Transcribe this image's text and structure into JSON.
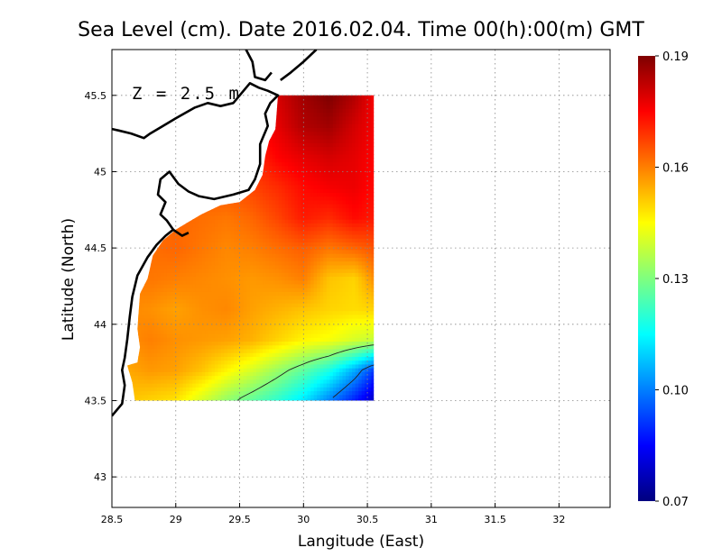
{
  "chart_data": {
    "type": "heatmap",
    "title": "Sea Level (cm). Date 2016.02.04. Time 00(h):00(m) GMT",
    "xlabel": "Langitude (East)",
    "ylabel": "Latitude (North)",
    "annotation": "Z = 2.5 m",
    "xlim": [
      28.5,
      32.4
    ],
    "ylim": [
      42.8,
      45.8
    ],
    "x_ticks": [
      "28.5",
      "29",
      "29.5",
      "30",
      "30.5",
      "31",
      "31.5",
      "32"
    ],
    "x_tick_values": [
      28.5,
      29,
      29.5,
      30,
      30.5,
      31,
      31.5,
      32
    ],
    "y_ticks": [
      "43",
      "43.5",
      "44",
      "44.5",
      "45",
      "45.5"
    ],
    "y_tick_values": [
      43,
      43.5,
      44,
      44.5,
      45,
      45.5
    ],
    "grid": true,
    "colorbar": {
      "min": 0.07,
      "max": 0.19,
      "labels": [
        "0.07",
        "0.10",
        "0.13",
        "0.16",
        "0.19"
      ],
      "label_values": [
        0.07,
        0.1,
        0.13,
        0.16,
        0.19
      ],
      "colors": [
        "#00007f",
        "#0000ff",
        "#007fff",
        "#00ffff",
        "#7fff7f",
        "#ffff00",
        "#ff7f00",
        "#ff0000",
        "#7f0000"
      ]
    },
    "field": {
      "lon": [
        28.6,
        28.8,
        29.0,
        29.2,
        29.4,
        29.6,
        29.8,
        30.0,
        30.2,
        30.4,
        30.55
      ],
      "lat": [
        43.5,
        43.7,
        43.9,
        44.1,
        44.3,
        44.5,
        44.7,
        44.9,
        45.1,
        45.3,
        45.5
      ],
      "values": [
        [
          0.152,
          0.15,
          0.148,
          0.14,
          0.132,
          0.126,
          0.12,
          0.112,
          0.1,
          0.088,
          0.078
        ],
        [
          0.155,
          0.157,
          0.156,
          0.152,
          0.146,
          0.14,
          0.133,
          0.126,
          0.118,
          0.105,
          0.092
        ],
        [
          0.158,
          0.16,
          0.158,
          0.157,
          0.156,
          0.154,
          0.15,
          0.146,
          0.144,
          0.14,
          0.138
        ],
        [
          0.159,
          0.158,
          0.156,
          0.158,
          0.159,
          0.156,
          0.154,
          0.152,
          0.15,
          0.149,
          0.15
        ],
        [
          0.16,
          0.161,
          0.16,
          0.159,
          0.158,
          0.157,
          0.158,
          0.16,
          0.152,
          0.15,
          0.158
        ],
        [
          0.16,
          0.162,
          0.163,
          0.161,
          0.159,
          0.16,
          0.162,
          0.164,
          0.161,
          0.163,
          0.165
        ],
        [
          0.16,
          0.162,
          0.163,
          0.162,
          0.161,
          0.163,
          0.167,
          0.172,
          0.17,
          0.174,
          0.172
        ],
        [
          0.16,
          0.162,
          0.163,
          0.164,
          0.165,
          0.167,
          0.17,
          0.174,
          0.176,
          0.177,
          0.174
        ],
        [
          0.16,
          0.162,
          0.164,
          0.166,
          0.168,
          0.17,
          0.175,
          0.178,
          0.18,
          0.178,
          0.175
        ],
        [
          0.16,
          0.162,
          0.165,
          0.168,
          0.17,
          0.174,
          0.178,
          0.184,
          0.186,
          0.18,
          0.176
        ],
        [
          0.16,
          0.163,
          0.166,
          0.169,
          0.172,
          0.176,
          0.18,
          0.186,
          0.19,
          0.184,
          0.176
        ]
      ],
      "contour_levels": [
        0.1,
        0.13
      ]
    },
    "data_mask_outline": [
      [
        29.8,
        45.5
      ],
      [
        30.55,
        45.5
      ],
      [
        30.55,
        43.5
      ],
      [
        28.68,
        43.5
      ],
      [
        28.66,
        43.62
      ],
      [
        28.62,
        43.73
      ],
      [
        28.7,
        43.75
      ],
      [
        28.72,
        43.85
      ],
      [
        28.7,
        43.97
      ],
      [
        28.72,
        44.2
      ],
      [
        28.78,
        44.3
      ],
      [
        28.82,
        44.45
      ],
      [
        28.9,
        44.55
      ],
      [
        29.0,
        44.62
      ],
      [
        29.1,
        44.67
      ],
      [
        29.2,
        44.72
      ],
      [
        29.35,
        44.78
      ],
      [
        29.5,
        44.8
      ],
      [
        29.62,
        44.88
      ],
      [
        29.68,
        44.98
      ],
      [
        29.7,
        45.1
      ],
      [
        29.73,
        45.2
      ],
      [
        29.78,
        45.28
      ],
      [
        29.8,
        45.5
      ]
    ],
    "coastlines": [
      [
        [
          28.5,
          43.4
        ],
        [
          28.58,
          43.48
        ],
        [
          28.6,
          43.6
        ],
        [
          28.58,
          43.7
        ],
        [
          28.6,
          43.78
        ],
        [
          28.62,
          43.9
        ],
        [
          28.64,
          44.05
        ],
        [
          28.66,
          44.18
        ],
        [
          28.7,
          44.32
        ],
        [
          28.78,
          44.44
        ],
        [
          28.85,
          44.52
        ],
        [
          28.92,
          44.58
        ],
        [
          28.98,
          44.62
        ],
        [
          28.93,
          44.68
        ],
        [
          28.88,
          44.72
        ],
        [
          28.92,
          44.8
        ],
        [
          28.86,
          44.85
        ],
        [
          28.88,
          44.95
        ],
        [
          28.95,
          45.0
        ],
        [
          29.02,
          44.92
        ],
        [
          29.1,
          44.87
        ],
        [
          29.18,
          44.84
        ],
        [
          29.3,
          44.82
        ],
        [
          29.45,
          44.85
        ],
        [
          29.57,
          44.88
        ],
        [
          29.62,
          44.95
        ],
        [
          29.66,
          45.05
        ],
        [
          29.66,
          45.18
        ],
        [
          29.68,
          45.22
        ],
        [
          29.72,
          45.3
        ],
        [
          29.7,
          45.38
        ],
        [
          29.74,
          45.45
        ],
        [
          29.8,
          45.5
        ],
        [
          29.72,
          45.53
        ],
        [
          29.65,
          45.55
        ],
        [
          29.58,
          45.58
        ],
        [
          29.52,
          45.52
        ],
        [
          29.45,
          45.45
        ],
        [
          29.35,
          45.43
        ],
        [
          29.25,
          45.45
        ],
        [
          29.15,
          45.42
        ],
        [
          29.0,
          45.35
        ],
        [
          28.9,
          45.3
        ],
        [
          28.8,
          45.25
        ],
        [
          28.75,
          45.22
        ],
        [
          28.65,
          45.25
        ],
        [
          28.55,
          45.27
        ],
        [
          28.5,
          45.28
        ]
      ],
      [
        [
          28.98,
          44.62
        ],
        [
          29.05,
          44.58
        ],
        [
          29.1,
          44.6
        ]
      ],
      [
        [
          29.82,
          45.6
        ],
        [
          29.9,
          45.65
        ],
        [
          30.0,
          45.72
        ],
        [
          30.1,
          45.8
        ]
      ],
      [
        [
          29.55,
          45.8
        ],
        [
          29.6,
          45.72
        ],
        [
          29.62,
          45.62
        ],
        [
          29.7,
          45.6
        ],
        [
          29.75,
          45.65
        ]
      ]
    ]
  }
}
